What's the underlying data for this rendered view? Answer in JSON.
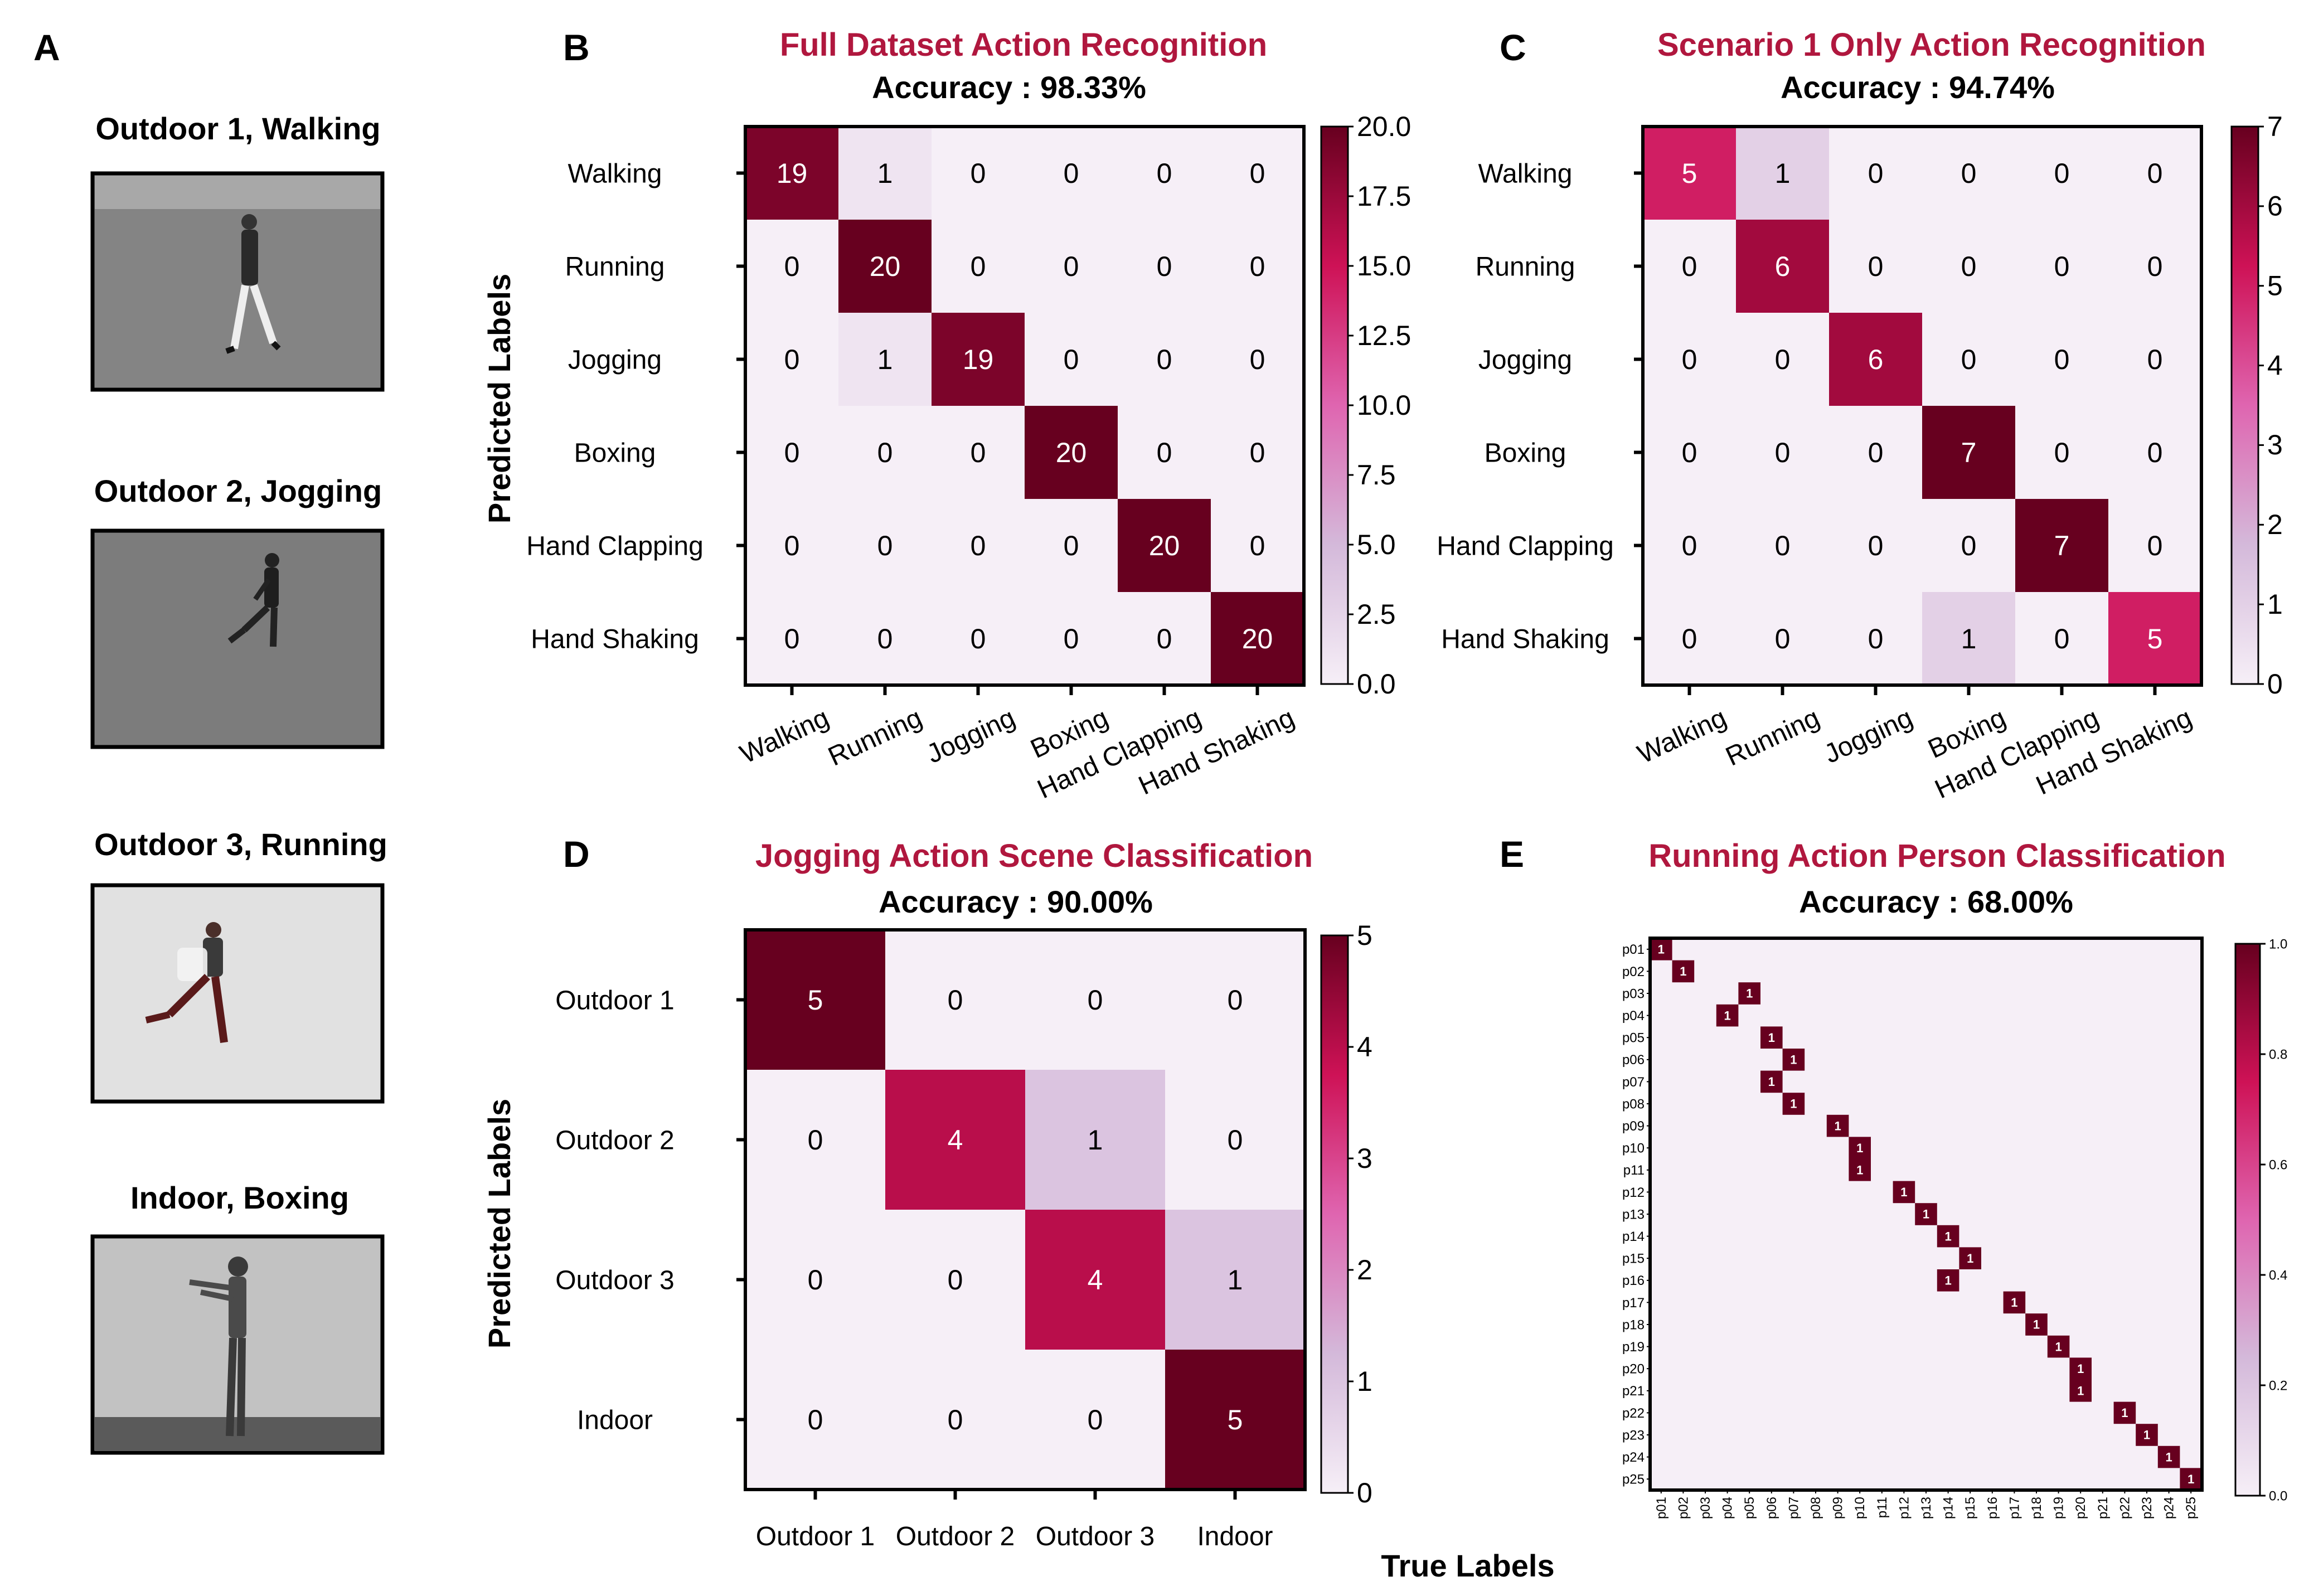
{
  "panels": {
    "a": {
      "letter": "A",
      "frames": [
        {
          "title": "Outdoor 1, Walking"
        },
        {
          "title": "Outdoor 2, Jogging"
        },
        {
          "title": "Outdoor 3, Running"
        },
        {
          "title": "Indoor, Boxing"
        }
      ]
    }
  },
  "shared_labels": {
    "ylabel": "Predicted Labels",
    "xlabel": "True Labels"
  },
  "colors": {
    "title": "#b0173e",
    "cmap_low": "#f6eff7",
    "cmap_mid": "#df65b0",
    "cmap_high": "#67001f"
  },
  "chart_data": [
    {
      "id": "B",
      "letter": "B",
      "type": "heatmap",
      "title": "Full Dataset Action Recognition",
      "subtitle": "Accuracy : 98.33%",
      "rows": [
        "Walking",
        "Running",
        "Jogging",
        "Boxing",
        "Hand Clapping",
        "Hand Shaking"
      ],
      "cols": [
        "Walking",
        "Running",
        "Jogging",
        "Boxing",
        "Hand Clapping",
        "Hand Shaking"
      ],
      "matrix": [
        [
          19,
          1,
          0,
          0,
          0,
          0
        ],
        [
          0,
          20,
          0,
          0,
          0,
          0
        ],
        [
          0,
          1,
          19,
          0,
          0,
          0
        ],
        [
          0,
          0,
          0,
          20,
          0,
          0
        ],
        [
          0,
          0,
          0,
          0,
          20,
          0
        ],
        [
          0,
          0,
          0,
          0,
          0,
          20
        ]
      ],
      "vmax": 20,
      "cbar_ticks": [
        "0.0",
        "2.5",
        "5.0",
        "7.5",
        "10.0",
        "12.5",
        "15.0",
        "17.5",
        "20.0"
      ]
    },
    {
      "id": "C",
      "letter": "C",
      "type": "heatmap",
      "title": "Scenario 1 Only Action Recognition",
      "subtitle": "Accuracy : 94.74%",
      "rows": [
        "Walking",
        "Running",
        "Jogging",
        "Boxing",
        "Hand Clapping",
        "Hand Shaking"
      ],
      "cols": [
        "Walking",
        "Running",
        "Jogging",
        "Boxing",
        "Hand Clapping",
        "Hand Shaking"
      ],
      "matrix": [
        [
          5,
          1,
          0,
          0,
          0,
          0
        ],
        [
          0,
          6,
          0,
          0,
          0,
          0
        ],
        [
          0,
          0,
          6,
          0,
          0,
          0
        ],
        [
          0,
          0,
          0,
          7,
          0,
          0
        ],
        [
          0,
          0,
          0,
          0,
          7,
          0
        ],
        [
          0,
          0,
          0,
          1,
          0,
          5
        ]
      ],
      "vmax": 7,
      "cbar_ticks": [
        "0",
        "1",
        "2",
        "3",
        "4",
        "5",
        "6",
        "7"
      ]
    },
    {
      "id": "D",
      "letter": "D",
      "type": "heatmap",
      "title": "Jogging Action Scene Classification",
      "subtitle": "Accuracy : 90.00%",
      "rows": [
        "Outdoor 1",
        "Outdoor 2",
        "Outdoor 3",
        "Indoor"
      ],
      "cols": [
        "Outdoor 1",
        "Outdoor 2",
        "Outdoor 3",
        "Indoor"
      ],
      "matrix": [
        [
          5,
          0,
          0,
          0
        ],
        [
          0,
          4,
          1,
          0
        ],
        [
          0,
          0,
          4,
          1
        ],
        [
          0,
          0,
          0,
          5
        ]
      ],
      "vmax": 5,
      "cbar_ticks": [
        "0",
        "1",
        "2",
        "3",
        "4",
        "5"
      ]
    },
    {
      "id": "E",
      "letter": "E",
      "type": "heatmap",
      "title": "Running Action Person Classification",
      "subtitle": "Accuracy : 68.00%",
      "rows": [
        "p01",
        "p02",
        "p03",
        "p04",
        "p05",
        "p06",
        "p07",
        "p08",
        "p09",
        "p10",
        "p11",
        "p12",
        "p13",
        "p14",
        "p15",
        "p16",
        "p17",
        "p18",
        "p19",
        "p20",
        "p21",
        "p22",
        "p23",
        "p24",
        "p25"
      ],
      "cols": [
        "p01",
        "p02",
        "p03",
        "p04",
        "p05",
        "p06",
        "p07",
        "p08",
        "p09",
        "p10",
        "p11",
        "p12",
        "p13",
        "p14",
        "p15",
        "p16",
        "p17",
        "p18",
        "p19",
        "p20",
        "p21",
        "p22",
        "p23",
        "p24",
        "p25"
      ],
      "ones": [
        [
          0,
          0
        ],
        [
          1,
          1
        ],
        [
          2,
          4
        ],
        [
          3,
          3
        ],
        [
          4,
          5
        ],
        [
          5,
          6
        ],
        [
          6,
          5
        ],
        [
          7,
          6
        ],
        [
          8,
          8
        ],
        [
          9,
          9
        ],
        [
          10,
          9
        ],
        [
          11,
          11
        ],
        [
          12,
          12
        ],
        [
          13,
          13
        ],
        [
          14,
          14
        ],
        [
          15,
          13
        ],
        [
          16,
          16
        ],
        [
          17,
          17
        ],
        [
          18,
          18
        ],
        [
          19,
          19
        ],
        [
          20,
          19
        ],
        [
          21,
          21
        ],
        [
          22,
          22
        ],
        [
          23,
          23
        ],
        [
          24,
          24
        ]
      ],
      "vmax": 1,
      "cbar_ticks": [
        "0.0",
        "0.2",
        "0.4",
        "0.6",
        "0.8",
        "1.0"
      ]
    }
  ]
}
